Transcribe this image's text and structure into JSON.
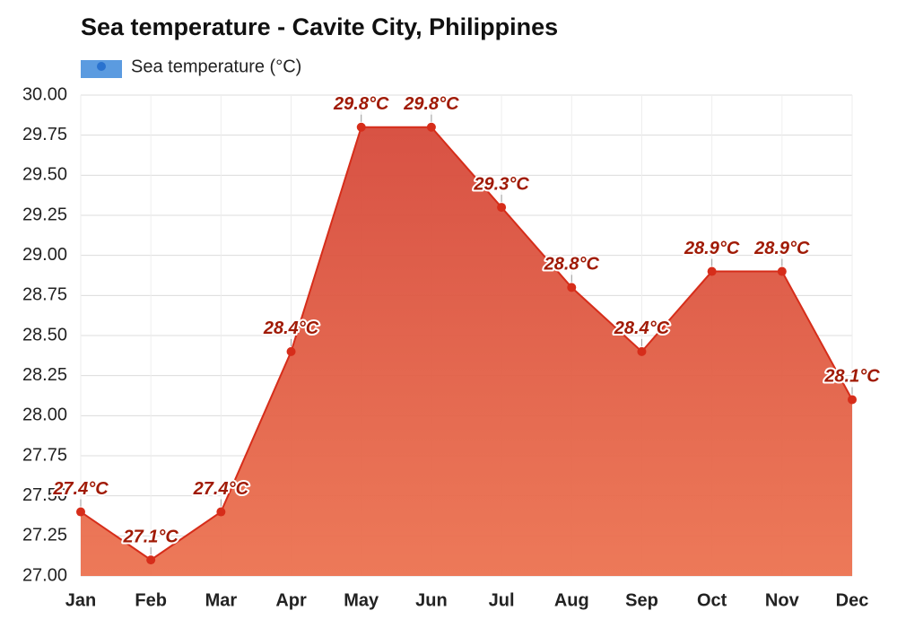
{
  "chart_data": {
    "type": "area",
    "title": "Sea temperature - Cavite City, Philippines",
    "categories": [
      "Jan",
      "Feb",
      "Mar",
      "Apr",
      "May",
      "Jun",
      "Jul",
      "Aug",
      "Sep",
      "Oct",
      "Nov",
      "Dec"
    ],
    "series": [
      {
        "name": "Sea temperature (°C)",
        "color": "#d62d1a",
        "values": [
          27.4,
          27.1,
          27.4,
          28.4,
          29.8,
          29.8,
          29.3,
          28.8,
          28.4,
          28.9,
          28.9,
          28.1
        ],
        "value_labels": [
          "27.4°C",
          "27.1°C",
          "27.4°C",
          "28.4°C",
          "29.8°C",
          "29.8°C",
          "29.3°C",
          "28.8°C",
          "28.4°C",
          "28.9°C",
          "28.9°C",
          "28.1°C"
        ]
      }
    ],
    "ylim": [
      27,
      30
    ],
    "yticks": [
      {
        "value": 27,
        "label": "27.00"
      },
      {
        "value": 27.25,
        "label": "27.25"
      },
      {
        "value": 27.5,
        "label": "27.50"
      },
      {
        "value": 27.75,
        "label": "27.75"
      },
      {
        "value": 28,
        "label": "28.00"
      },
      {
        "value": 28.25,
        "label": "28.25"
      },
      {
        "value": 28.5,
        "label": "28.50"
      },
      {
        "value": 28.75,
        "label": "28.75"
      },
      {
        "value": 29,
        "label": "29.00"
      },
      {
        "value": 29.25,
        "label": "29.25"
      },
      {
        "value": 29.5,
        "label": "29.50"
      },
      {
        "value": 29.75,
        "label": "29.75"
      },
      {
        "value": 30,
        "label": "30.00"
      }
    ],
    "grid": true
  }
}
